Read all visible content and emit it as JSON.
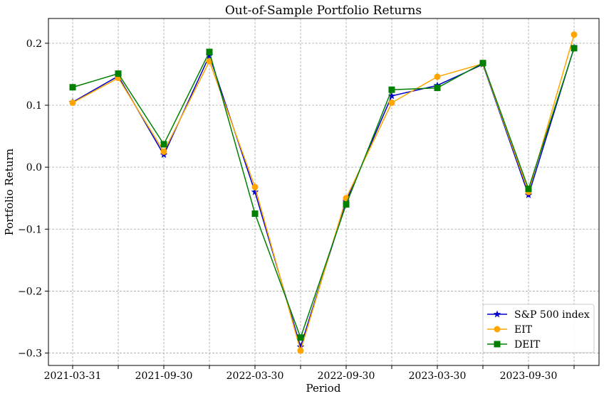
{
  "chart_data": {
    "type": "line",
    "title": "Out-of-Sample Portfolio Returns",
    "xlabel": "Period",
    "ylabel": "Portfolio Return",
    "x": [
      "2021-03-31",
      "2021-06-30",
      "2021-09-30",
      "2021-12-31",
      "2022-03-30",
      "2022-06-30",
      "2022-09-30",
      "2022-12-31",
      "2023-03-30",
      "2023-06-30",
      "2023-09-30",
      "2023-12-31"
    ],
    "x_tick_labels": [
      "2021-03-31",
      "",
      "2021-09-30",
      "",
      "2022-03-30",
      "",
      "2022-09-30",
      "",
      "2023-03-30",
      "",
      "2023-09-30",
      ""
    ],
    "y_tick_values": [
      -0.3,
      -0.2,
      -0.1,
      0.0,
      0.1,
      0.2
    ],
    "y_tick_labels": [
      "−0.3",
      "−0.2",
      "−0.1",
      "0.0",
      "0.1",
      "0.2"
    ],
    "ylim": [
      -0.32,
      0.24
    ],
    "grid": true,
    "legend_position": "bottom-right",
    "series": [
      {
        "name": "S&P 500 index",
        "color": "#0000cc",
        "marker": "star",
        "values": [
          0.105,
          0.147,
          0.02,
          0.18,
          -0.04,
          -0.29,
          -0.055,
          0.115,
          0.132,
          0.166,
          -0.045,
          0.193
        ]
      },
      {
        "name": "EIT",
        "color": "#ffa500",
        "marker": "circle",
        "values": [
          0.104,
          0.144,
          0.025,
          0.171,
          -0.032,
          -0.296,
          -0.05,
          0.104,
          0.146,
          0.167,
          -0.04,
          0.214
        ]
      },
      {
        "name": "DEIT",
        "color": "#008000",
        "marker": "square",
        "values": [
          0.129,
          0.151,
          0.037,
          0.186,
          -0.075,
          -0.275,
          -0.06,
          0.125,
          0.128,
          0.168,
          -0.035,
          0.192
        ]
      }
    ]
  }
}
